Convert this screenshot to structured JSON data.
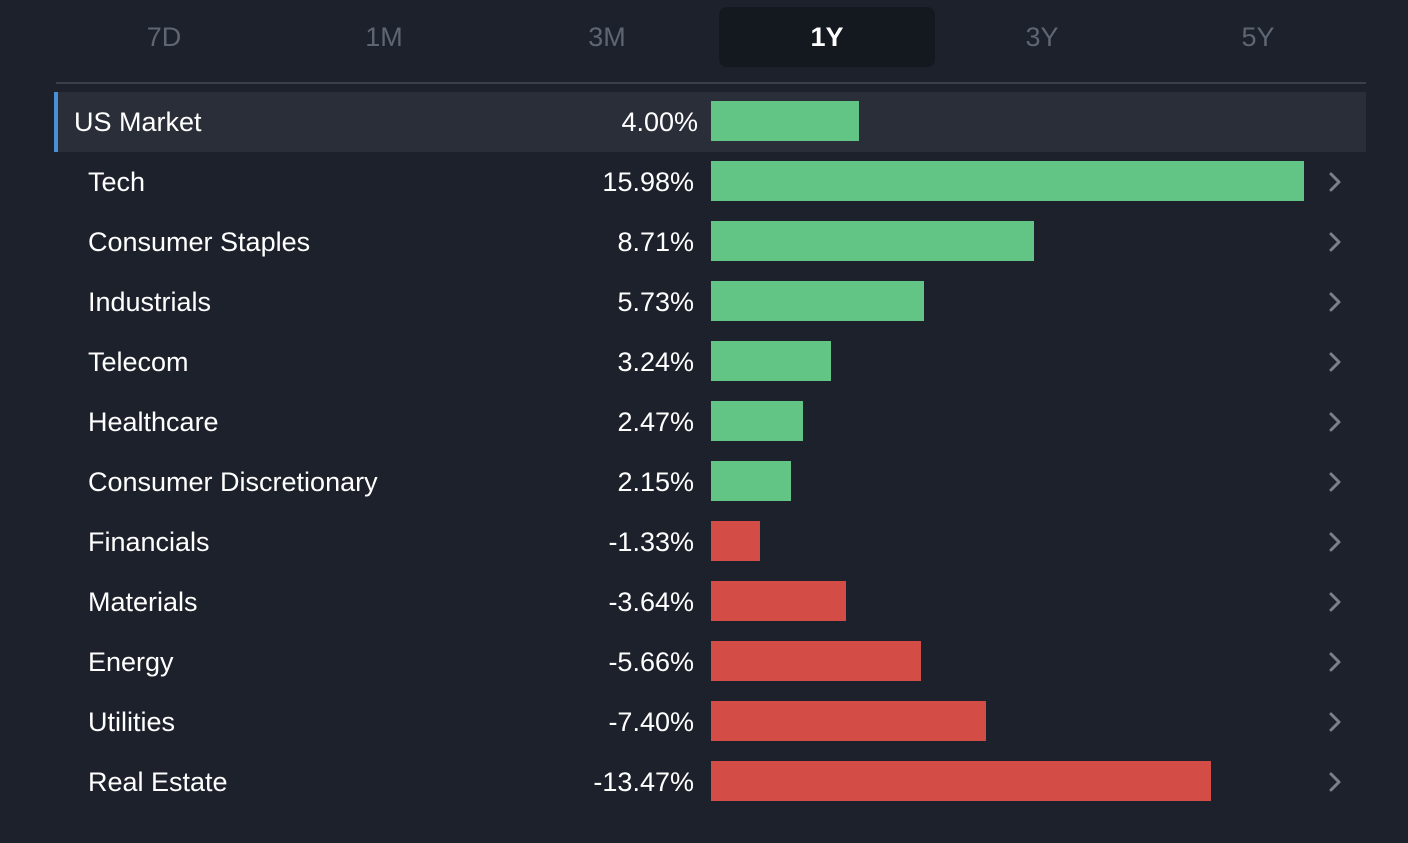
{
  "tabs": [
    "7D",
    "1M",
    "3M",
    "1Y",
    "3Y",
    "5Y"
  ],
  "active_tab": "1Y",
  "colors": {
    "positive": "#62c585",
    "negative": "#d44c46",
    "market_accent": "#4a90d9"
  },
  "chart_data": {
    "type": "bar",
    "orientation": "horizontal",
    "categories": [
      "US Market",
      "Tech",
      "Consumer Staples",
      "Industrials",
      "Telecom",
      "Healthcare",
      "Consumer Discretionary",
      "Financials",
      "Materials",
      "Energy",
      "Utilities",
      "Real Estate"
    ],
    "values": [
      4.0,
      15.98,
      8.71,
      5.73,
      3.24,
      2.47,
      2.15,
      -1.33,
      -3.64,
      -5.66,
      -7.4,
      -13.47
    ],
    "value_labels": [
      "4.00%",
      "15.98%",
      "8.71%",
      "5.73%",
      "3.24%",
      "2.47%",
      "2.15%",
      "-1.33%",
      "-3.64%",
      "-5.66%",
      "-7.40%",
      "-13.47%"
    ],
    "bar_length": "absolute value",
    "max_abs_value": 15.98
  },
  "icons": {
    "row_chevron": "chevron-right-icon"
  }
}
